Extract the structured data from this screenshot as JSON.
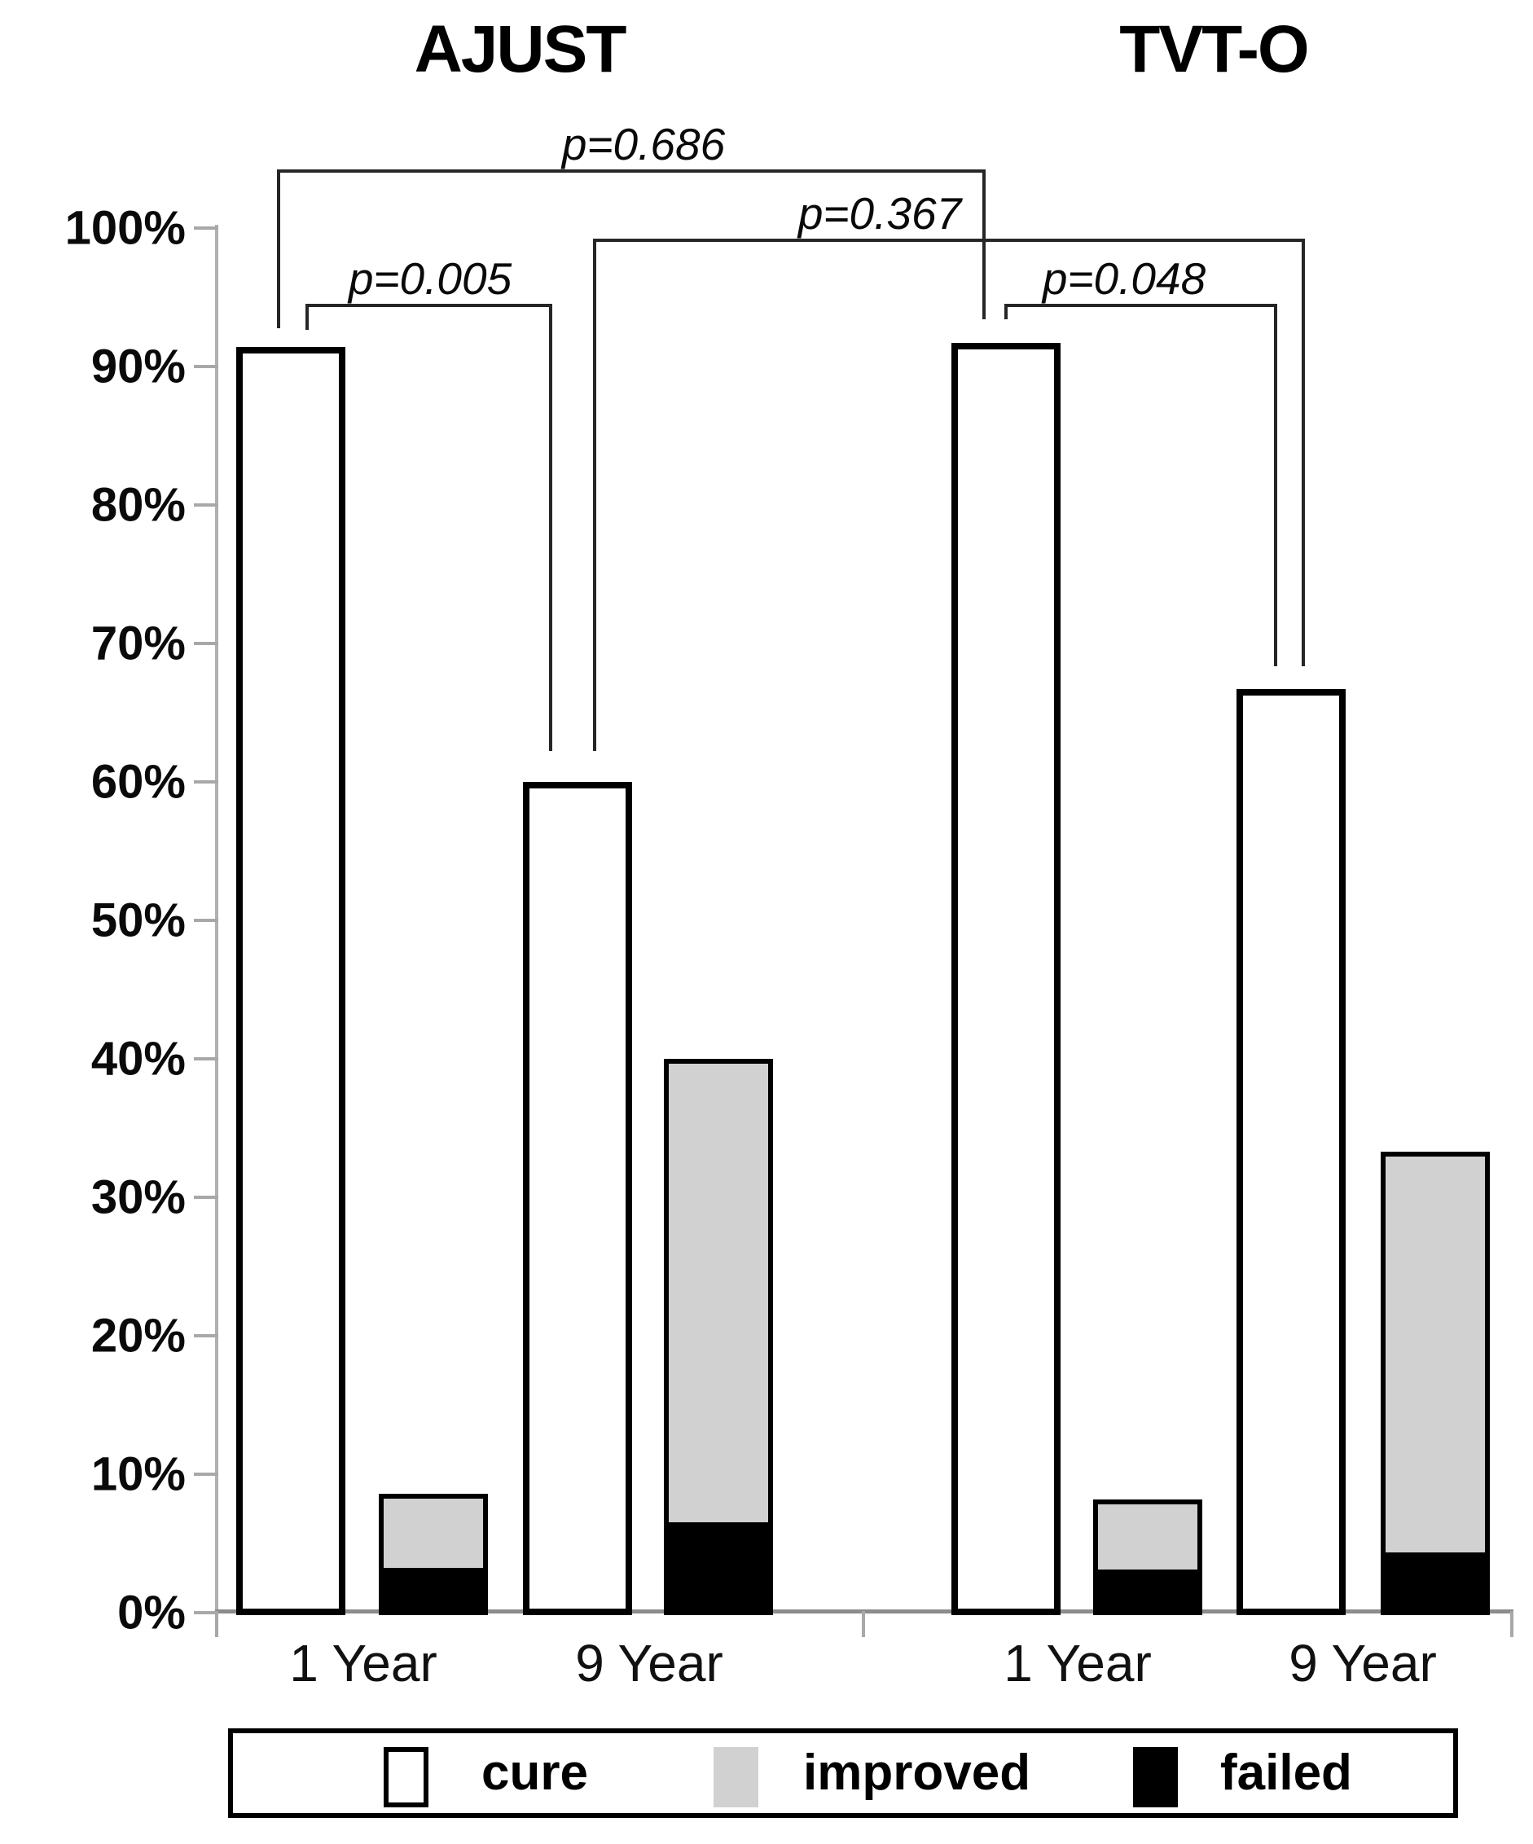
{
  "figure": {
    "title_left": "AJUST",
    "title_right": "TVT-O"
  },
  "y_axis": {
    "tick_labels": [
      "100%",
      "90%",
      "80%",
      "70%",
      "60%",
      "50%",
      "40%",
      "30%",
      "20%",
      "10%",
      "0%"
    ]
  },
  "x_axis": {
    "group_labels": [
      "1 Year",
      "9 Year",
      "1 Year",
      "9 Year"
    ]
  },
  "p_values": [
    {
      "label": "p=0.686",
      "between": [
        "AJUST 1 Year cure",
        "TVT-O 1 Year cure"
      ]
    },
    {
      "label": "p=0.367",
      "between": [
        "AJUST 9 Year cure",
        "TVT-O 9 Year cure"
      ]
    },
    {
      "label": "p=0.005",
      "between": [
        "AJUST 1 Year cure",
        "AJUST 9 Year cure"
      ]
    },
    {
      "label": "p=0.048",
      "between": [
        "TVT-O 1 Year cure",
        "TVT-O 9 Year cure"
      ]
    }
  ],
  "legend": {
    "items": [
      {
        "label": "cure",
        "color": "#ffffff"
      },
      {
        "label": "improved",
        "color": "#d1d1d1"
      },
      {
        "label": "failed",
        "color": "#000000"
      }
    ]
  },
  "chart_data": {
    "type": "bar",
    "subtype": "grouped-pairs; second bar of each pair is stacked (improved over failed)",
    "title": "AJUST vs TVT-O: cure, improved and failed rates at 1 and 9 years",
    "xlabel": "",
    "ylabel": "",
    "ylim": [
      0,
      100
    ],
    "ytick_step": 10,
    "ytick_labels": [
      "100%",
      "90%",
      "80%",
      "70%",
      "60%",
      "50%",
      "40%",
      "30%",
      "20%",
      "10%",
      "0%"
    ],
    "grid": false,
    "legend_position": "bottom",
    "series_colors": {
      "cure": "#ffffff",
      "improved": "#d1d1d1",
      "failed": "#000000"
    },
    "groups": [
      {
        "treatment": "AJUST",
        "time": "1 Year",
        "cure": 91.4,
        "improved": 5.2,
        "failed": 3.4
      },
      {
        "treatment": "AJUST",
        "time": "9 Year",
        "cure": 60.0,
        "improved": 33.3,
        "failed": 6.7
      },
      {
        "treatment": "TVT-O",
        "time": "1 Year",
        "cure": 91.7,
        "improved": 4.9,
        "failed": 3.3
      },
      {
        "treatment": "TVT-O",
        "time": "9 Year",
        "cure": 66.7,
        "improved": 28.8,
        "failed": 4.5
      }
    ],
    "comparisons": [
      {
        "label": "p=0.686",
        "between": [
          "AJUST 1 Year cure",
          "TVT-O 1 Year cure"
        ]
      },
      {
        "label": "p=0.367",
        "between": [
          "AJUST 9 Year cure",
          "TVT-O 9 Year cure"
        ]
      },
      {
        "label": "p=0.005",
        "between": [
          "AJUST 1 Year cure",
          "AJUST 9 Year cure"
        ]
      },
      {
        "label": "p=0.048",
        "between": [
          "TVT-O 1 Year cure",
          "TVT-O 9 Year cure"
        ]
      }
    ]
  }
}
